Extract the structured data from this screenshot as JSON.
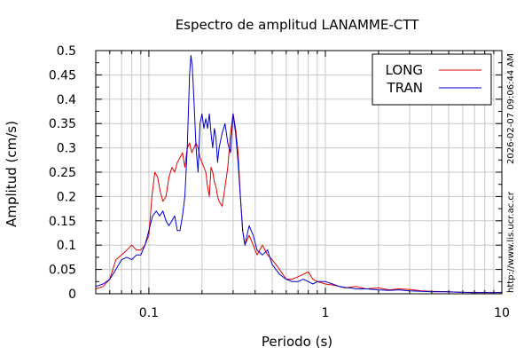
{
  "chart_data": {
    "type": "line",
    "title": "Espectro de amplitud LANAMME-CTT",
    "xlabel": "Periodo (s)",
    "ylabel": "Amplitud (cm/s)",
    "x_scale": "log",
    "xlim": [
      0.05,
      10
    ],
    "ylim": [
      0,
      0.5
    ],
    "grid": true,
    "legend_position": "top-right",
    "x_tick_labels": [
      {
        "value": 0.1,
        "label": "0.1"
      },
      {
        "value": 1,
        "label": "1"
      },
      {
        "value": 10,
        "label": "10"
      }
    ],
    "y_tick_labels": [
      "0",
      "0.05",
      "0.1",
      "0.15",
      "0.2",
      "0.25",
      "0.3",
      "0.35",
      "0.4",
      "0.45",
      "0.5"
    ],
    "side_text": [
      "http://www.lis.ucr.ac.cr",
      "2026-02-07 09:06:44 AM"
    ],
    "series": [
      {
        "name": "LONG",
        "color": "#dd0000",
        "x": [
          0.05,
          0.055,
          0.06,
          0.065,
          0.07,
          0.075,
          0.08,
          0.085,
          0.09,
          0.095,
          0.1,
          0.104,
          0.108,
          0.112,
          0.116,
          0.12,
          0.125,
          0.13,
          0.135,
          0.14,
          0.145,
          0.15,
          0.155,
          0.16,
          0.165,
          0.17,
          0.175,
          0.18,
          0.185,
          0.19,
          0.195,
          0.2,
          0.205,
          0.21,
          0.215,
          0.22,
          0.225,
          0.23,
          0.235,
          0.24,
          0.245,
          0.25,
          0.26,
          0.27,
          0.28,
          0.29,
          0.3,
          0.31,
          0.32,
          0.33,
          0.34,
          0.35,
          0.37,
          0.39,
          0.41,
          0.44,
          0.47,
          0.5,
          0.55,
          0.6,
          0.65,
          0.7,
          0.75,
          0.8,
          0.85,
          0.9,
          1,
          1.1,
          1.2,
          1.3,
          1.5,
          1.7,
          2,
          2.3,
          2.6,
          3,
          3.5,
          4,
          5,
          6,
          7,
          8,
          9,
          10
        ],
        "y": [
          0.01,
          0.015,
          0.03,
          0.07,
          0.08,
          0.09,
          0.1,
          0.09,
          0.09,
          0.1,
          0.12,
          0.2,
          0.25,
          0.24,
          0.21,
          0.19,
          0.2,
          0.24,
          0.26,
          0.25,
          0.27,
          0.28,
          0.29,
          0.26,
          0.3,
          0.31,
          0.29,
          0.3,
          0.31,
          0.3,
          0.28,
          0.27,
          0.26,
          0.25,
          0.22,
          0.2,
          0.26,
          0.25,
          0.23,
          0.22,
          0.2,
          0.19,
          0.18,
          0.22,
          0.26,
          0.33,
          0.37,
          0.34,
          0.29,
          0.2,
          0.13,
          0.1,
          0.12,
          0.1,
          0.08,
          0.1,
          0.08,
          0.07,
          0.05,
          0.03,
          0.03,
          0.035,
          0.04,
          0.045,
          0.03,
          0.025,
          0.02,
          0.018,
          0.015,
          0.012,
          0.015,
          0.01,
          0.012,
          0.008,
          0.01,
          0.009,
          0.006,
          0.005,
          0.004,
          0.003,
          0.003,
          0.002,
          0.003,
          0.002
        ]
      },
      {
        "name": "TRAN",
        "color": "#0000cc",
        "x": [
          0.05,
          0.055,
          0.06,
          0.065,
          0.07,
          0.075,
          0.08,
          0.085,
          0.09,
          0.095,
          0.1,
          0.105,
          0.11,
          0.115,
          0.12,
          0.125,
          0.13,
          0.135,
          0.14,
          0.145,
          0.15,
          0.155,
          0.16,
          0.165,
          0.17,
          0.173,
          0.176,
          0.18,
          0.185,
          0.19,
          0.195,
          0.2,
          0.205,
          0.21,
          0.215,
          0.22,
          0.225,
          0.23,
          0.235,
          0.24,
          0.245,
          0.25,
          0.26,
          0.27,
          0.28,
          0.29,
          0.3,
          0.31,
          0.32,
          0.33,
          0.34,
          0.35,
          0.37,
          0.39,
          0.41,
          0.44,
          0.47,
          0.5,
          0.55,
          0.6,
          0.65,
          0.7,
          0.75,
          0.8,
          0.85,
          0.9,
          1,
          1.1,
          1.2,
          1.3,
          1.5,
          1.7,
          2,
          2.3,
          2.6,
          3,
          3.5,
          4,
          5,
          6,
          7,
          8,
          9,
          10
        ],
        "y": [
          0.015,
          0.02,
          0.03,
          0.05,
          0.07,
          0.075,
          0.07,
          0.08,
          0.08,
          0.1,
          0.13,
          0.16,
          0.17,
          0.16,
          0.17,
          0.15,
          0.14,
          0.15,
          0.16,
          0.13,
          0.13,
          0.16,
          0.2,
          0.3,
          0.45,
          0.49,
          0.47,
          0.4,
          0.3,
          0.25,
          0.35,
          0.37,
          0.34,
          0.36,
          0.34,
          0.37,
          0.33,
          0.3,
          0.34,
          0.32,
          0.27,
          0.3,
          0.33,
          0.35,
          0.31,
          0.29,
          0.37,
          0.33,
          0.27,
          0.2,
          0.13,
          0.1,
          0.14,
          0.12,
          0.09,
          0.08,
          0.09,
          0.06,
          0.04,
          0.03,
          0.025,
          0.025,
          0.03,
          0.025,
          0.02,
          0.025,
          0.025,
          0.02,
          0.015,
          0.013,
          0.01,
          0.01,
          0.008,
          0.007,
          0.008,
          0.006,
          0.005,
          0.004,
          0.004,
          0.003,
          0.002,
          0.003,
          0.002,
          0.003
        ]
      }
    ]
  }
}
